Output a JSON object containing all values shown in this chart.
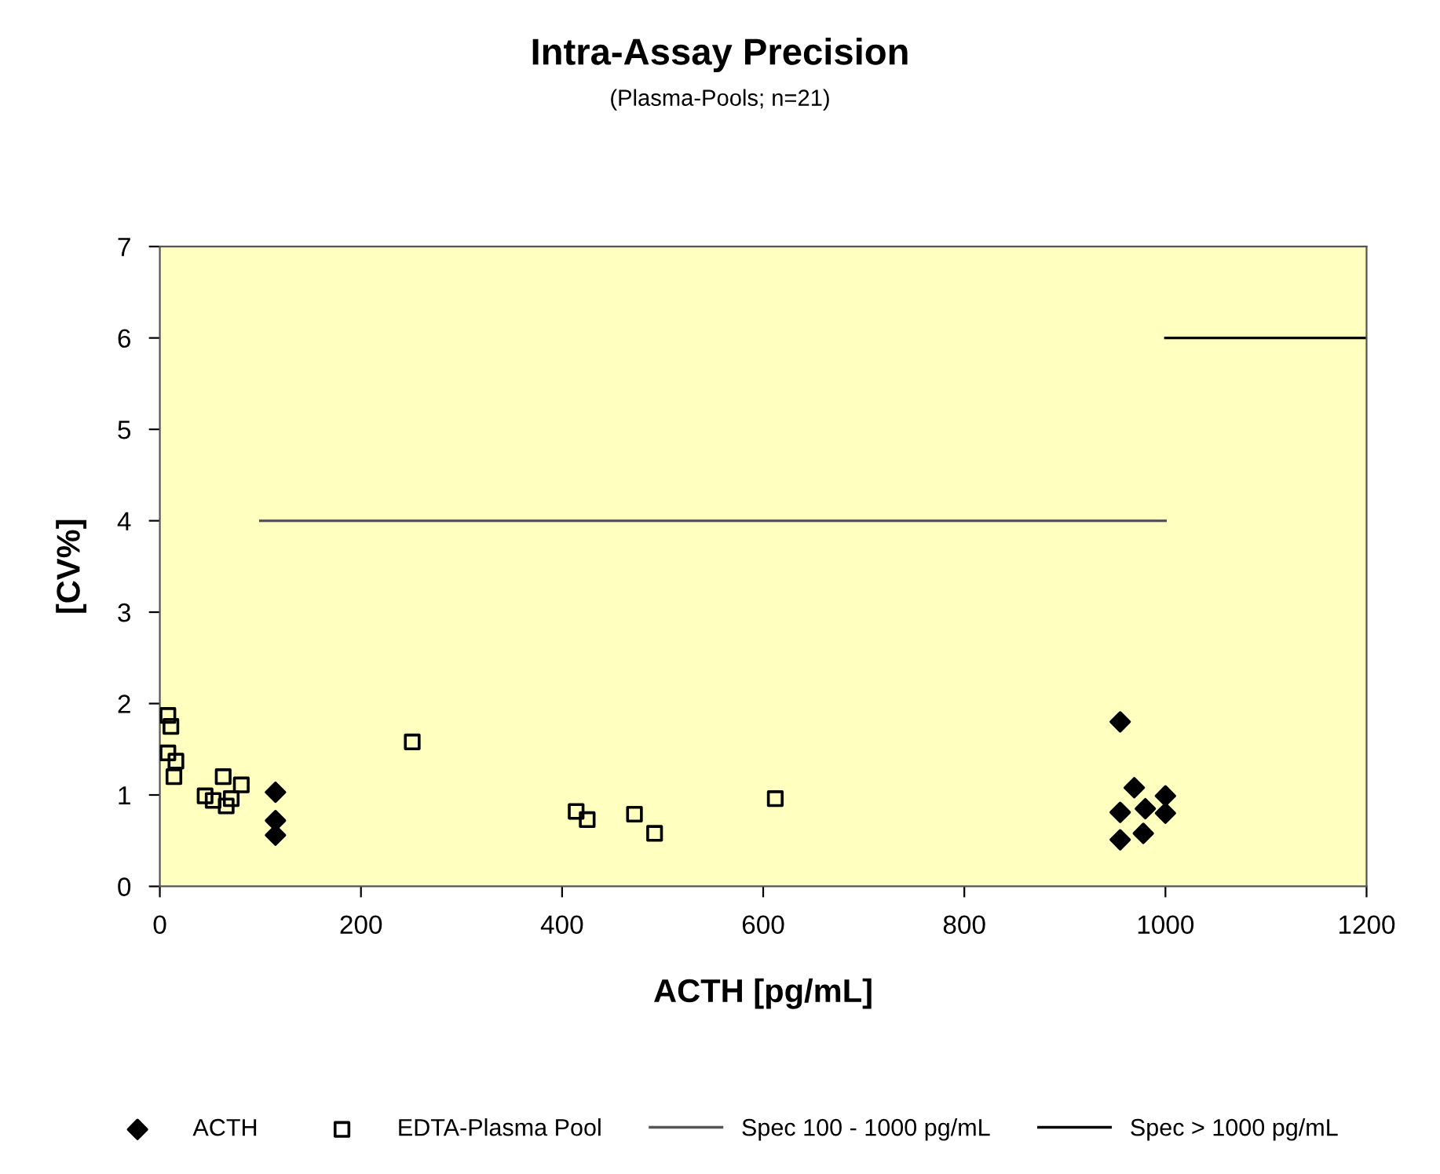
{
  "chart_data": {
    "type": "scatter",
    "title": "Intra-Assay Precision",
    "subtitle": "(Plasma-Pools; n=21)",
    "xlabel": "ACTH [pg/mL]",
    "ylabel": "[CV%]",
    "xlim": [
      0,
      1200
    ],
    "xticks": [
      0,
      200,
      400,
      600,
      800,
      1000,
      1200
    ],
    "ylim": [
      0,
      7
    ],
    "yticks": [
      0,
      1,
      2,
      3,
      4,
      5,
      6,
      7
    ],
    "grid": false,
    "legend": "bottom",
    "series": [
      {
        "name": "ACTH",
        "marker": "diamond",
        "color": "#000000",
        "x": [
          115,
          115,
          115,
          955,
          955,
          955,
          969,
          980,
          978,
          1000,
          1000
        ],
        "values": [
          1.03,
          0.72,
          0.56,
          1.8,
          0.81,
          0.51,
          1.08,
          0.85,
          0.58,
          0.99,
          0.8
        ]
      },
      {
        "name": "EDTA-Plasma Pool",
        "marker": "square",
        "color": "#000000",
        "x": [
          8,
          11,
          8,
          16,
          14,
          63,
          45,
          53,
          66,
          71,
          81,
          251,
          414,
          425,
          472,
          492,
          612
        ],
        "values": [
          1.87,
          1.75,
          1.46,
          1.37,
          1.2,
          1.2,
          0.99,
          0.94,
          0.88,
          0.96,
          1.11,
          1.58,
          0.82,
          0.73,
          0.79,
          0.58,
          0.96
        ]
      },
      {
        "name": "Spec 100 - 1000 pg/mL",
        "type": "line",
        "marker": "none",
        "line_style": "solid",
        "color": "#555555",
        "x": [
          100,
          1000
        ],
        "values": [
          4,
          4
        ]
      },
      {
        "name": "Spec > 1000 pg/mL",
        "type": "line",
        "marker": "none",
        "line_style": "solid",
        "color": "#000000",
        "x": [
          1000,
          1200
        ],
        "values": [
          6,
          6
        ]
      }
    ]
  }
}
